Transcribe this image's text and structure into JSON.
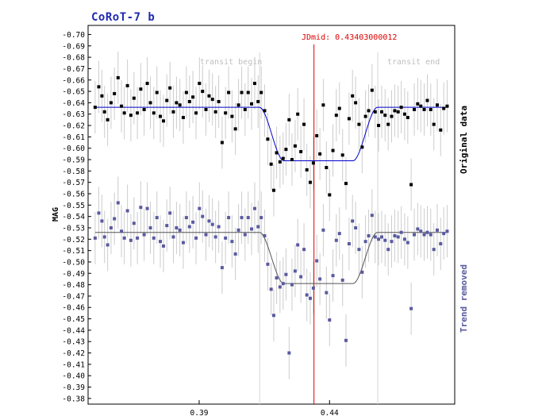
{
  "chart_data": {
    "type": "scatter",
    "title": "CoRoT-7 b",
    "ylabel": "MAG",
    "xlim": [
      0.3474,
      0.488
    ],
    "ylim": [
      -0.375,
      -0.708
    ],
    "x_ticks": [
      0.39,
      0.44
    ],
    "y_ticks": [
      -0.7,
      -0.69,
      -0.68,
      -0.67,
      -0.66,
      -0.65,
      -0.64,
      -0.63,
      -0.62,
      -0.61,
      -0.6,
      -0.59,
      -0.58,
      -0.57,
      -0.56,
      -0.55,
      -0.54,
      -0.53,
      -0.52,
      -0.51,
      -0.5,
      -0.49,
      -0.48,
      -0.47,
      -0.46,
      -0.45,
      -0.44,
      -0.43,
      -0.42,
      -0.41,
      -0.4,
      -0.39,
      -0.38
    ],
    "annotations": {
      "jdmid_label": "JDmid: 0.43403000012",
      "transit_begin": "transit begin",
      "transit_end": "transit end"
    },
    "jdmid": 0.43403,
    "transit_begin_x": 0.4132,
    "transit_end_x": 0.4585,
    "colors": {
      "original": "#000000",
      "detrended": "#5a5aa0",
      "model_original": "#0000cc",
      "model_detrended": "#555555",
      "error_bar": "#cccccc",
      "jdmid_line": "#dd0000",
      "transit_line": "#d6d6d6",
      "title": "#1f2bb0"
    },
    "series": [
      {
        "name": "Original data",
        "points": [
          [
            0.3501,
            -0.636
          ],
          [
            0.3515,
            -0.654
          ],
          [
            0.3527,
            -0.646
          ],
          [
            0.3537,
            -0.632
          ],
          [
            0.3549,
            -0.625
          ],
          [
            0.3562,
            -0.64
          ],
          [
            0.3575,
            -0.648
          ],
          [
            0.3589,
            -0.662
          ],
          [
            0.3602,
            -0.637
          ],
          [
            0.3613,
            -0.631
          ],
          [
            0.3625,
            -0.655
          ],
          [
            0.3638,
            -0.629
          ],
          [
            0.365,
            -0.644
          ],
          [
            0.3663,
            -0.631
          ],
          [
            0.3676,
            -0.652
          ],
          [
            0.3689,
            -0.634
          ],
          [
            0.3701,
            -0.657
          ],
          [
            0.3713,
            -0.64
          ],
          [
            0.3726,
            -0.631
          ],
          [
            0.3738,
            -0.649
          ],
          [
            0.3751,
            -0.628
          ],
          [
            0.3763,
            -0.624
          ],
          [
            0.3776,
            -0.642
          ],
          [
            0.3788,
            -0.653
          ],
          [
            0.3801,
            -0.632
          ],
          [
            0.3813,
            -0.64
          ],
          [
            0.3826,
            -0.638
          ],
          [
            0.3839,
            -0.627
          ],
          [
            0.3851,
            -0.649
          ],
          [
            0.3863,
            -0.641
          ],
          [
            0.3876,
            -0.645
          ],
          [
            0.3888,
            -0.631
          ],
          [
            0.3901,
            -0.657
          ],
          [
            0.3913,
            -0.65
          ],
          [
            0.3926,
            -0.634
          ],
          [
            0.3938,
            -0.646
          ],
          [
            0.3951,
            -0.643
          ],
          [
            0.3963,
            -0.632
          ],
          [
            0.3975,
            -0.641
          ],
          [
            0.3988,
            -0.605
          ],
          [
            0.4001,
            -0.631
          ],
          [
            0.4013,
            -0.649
          ],
          [
            0.4026,
            -0.628
          ],
          [
            0.4039,
            -0.617
          ],
          [
            0.4051,
            -0.638
          ],
          [
            0.4063,
            -0.649
          ],
          [
            0.4076,
            -0.634
          ],
          [
            0.4088,
            -0.649
          ],
          [
            0.4101,
            -0.639
          ],
          [
            0.4113,
            -0.657
          ],
          [
            0.4126,
            -0.641
          ],
          [
            0.4138,
            -0.649
          ],
          [
            0.4151,
            -0.633
          ],
          [
            0.4163,
            -0.608
          ],
          [
            0.4176,
            -0.586
          ],
          [
            0.4186,
            -0.563
          ],
          [
            0.4197,
            -0.596
          ],
          [
            0.421,
            -0.588
          ],
          [
            0.4222,
            -0.591
          ],
          [
            0.4233,
            -0.599
          ],
          [
            0.4245,
            -0.625
          ],
          [
            0.4256,
            -0.59
          ],
          [
            0.4268,
            -0.602
          ],
          [
            0.4278,
            -0.63
          ],
          [
            0.429,
            -0.597
          ],
          [
            0.4302,
            -0.621
          ],
          [
            0.4313,
            -0.581
          ],
          [
            0.4326,
            -0.57
          ],
          [
            0.4338,
            -0.587
          ],
          [
            0.4351,
            -0.611
          ],
          [
            0.4363,
            -0.595
          ],
          [
            0.4376,
            -0.638
          ],
          [
            0.4388,
            -0.583
          ],
          [
            0.44,
            -0.559
          ],
          [
            0.4413,
            -0.598
          ],
          [
            0.4426,
            -0.629
          ],
          [
            0.4438,
            -0.635
          ],
          [
            0.445,
            -0.594
          ],
          [
            0.4463,
            -0.569
          ],
          [
            0.4475,
            -0.626
          ],
          [
            0.4488,
            -0.646
          ],
          [
            0.45,
            -0.64
          ],
          [
            0.4513,
            -0.621
          ],
          [
            0.4525,
            -0.601
          ],
          [
            0.4538,
            -0.628
          ],
          [
            0.455,
            -0.633
          ],
          [
            0.4563,
            -0.651
          ],
          [
            0.4575,
            -0.632
          ],
          [
            0.4588,
            -0.62
          ],
          [
            0.46,
            -0.632
          ],
          [
            0.4613,
            -0.629
          ],
          [
            0.4625,
            -0.621
          ],
          [
            0.4638,
            -0.628
          ],
          [
            0.465,
            -0.633
          ],
          [
            0.4663,
            -0.632
          ],
          [
            0.4675,
            -0.636
          ],
          [
            0.4688,
            -0.63
          ],
          [
            0.47,
            -0.627
          ],
          [
            0.4713,
            -0.568
          ],
          [
            0.4725,
            -0.634
          ],
          [
            0.4738,
            -0.639
          ],
          [
            0.475,
            -0.637
          ],
          [
            0.4763,
            -0.634
          ],
          [
            0.4775,
            -0.642
          ],
          [
            0.4788,
            -0.634
          ],
          [
            0.48,
            -0.621
          ],
          [
            0.4813,
            -0.638
          ],
          [
            0.4826,
            -0.616
          ],
          [
            0.4838,
            -0.635
          ],
          [
            0.4851,
            -0.637
          ]
        ]
      },
      {
        "name": "Trend removed",
        "points": [
          [
            0.3501,
            -0.521
          ],
          [
            0.3515,
            -0.543
          ],
          [
            0.3527,
            -0.536
          ],
          [
            0.3537,
            -0.522
          ],
          [
            0.3549,
            -0.515
          ],
          [
            0.3562,
            -0.53
          ],
          [
            0.3575,
            -0.538
          ],
          [
            0.3589,
            -0.552
          ],
          [
            0.3602,
            -0.527
          ],
          [
            0.3613,
            -0.521
          ],
          [
            0.3625,
            -0.545
          ],
          [
            0.3638,
            -0.519
          ],
          [
            0.365,
            -0.534
          ],
          [
            0.3663,
            -0.521
          ],
          [
            0.3676,
            -0.548
          ],
          [
            0.3689,
            -0.524
          ],
          [
            0.3701,
            -0.547
          ],
          [
            0.3713,
            -0.53
          ],
          [
            0.3726,
            -0.521
          ],
          [
            0.3738,
            -0.539
          ],
          [
            0.3751,
            -0.518
          ],
          [
            0.3763,
            -0.514
          ],
          [
            0.3776,
            -0.532
          ],
          [
            0.3788,
            -0.543
          ],
          [
            0.3801,
            -0.522
          ],
          [
            0.3813,
            -0.53
          ],
          [
            0.3826,
            -0.528
          ],
          [
            0.3839,
            -0.517
          ],
          [
            0.3851,
            -0.539
          ],
          [
            0.3863,
            -0.531
          ],
          [
            0.3876,
            -0.535
          ],
          [
            0.3888,
            -0.521
          ],
          [
            0.3901,
            -0.547
          ],
          [
            0.3913,
            -0.54
          ],
          [
            0.3926,
            -0.524
          ],
          [
            0.3938,
            -0.536
          ],
          [
            0.3951,
            -0.533
          ],
          [
            0.3963,
            -0.522
          ],
          [
            0.3975,
            -0.531
          ],
          [
            0.3988,
            -0.495
          ],
          [
            0.4001,
            -0.521
          ],
          [
            0.4013,
            -0.539
          ],
          [
            0.4026,
            -0.518
          ],
          [
            0.4039,
            -0.507
          ],
          [
            0.4051,
            -0.528
          ],
          [
            0.4063,
            -0.539
          ],
          [
            0.4076,
            -0.524
          ],
          [
            0.4088,
            -0.539
          ],
          [
            0.4101,
            -0.529
          ],
          [
            0.4113,
            -0.547
          ],
          [
            0.4126,
            -0.531
          ],
          [
            0.4138,
            -0.539
          ],
          [
            0.4151,
            -0.523
          ],
          [
            0.4163,
            -0.498
          ],
          [
            0.4176,
            -0.476
          ],
          [
            0.4186,
            -0.453
          ],
          [
            0.4197,
            -0.486
          ],
          [
            0.421,
            -0.478
          ],
          [
            0.4222,
            -0.481
          ],
          [
            0.4233,
            -0.489
          ],
          [
            0.4245,
            -0.42
          ],
          [
            0.4256,
            -0.48
          ],
          [
            0.4268,
            -0.492
          ],
          [
            0.4278,
            -0.515
          ],
          [
            0.429,
            -0.487
          ],
          [
            0.4302,
            -0.511
          ],
          [
            0.4313,
            -0.471
          ],
          [
            0.4326,
            -0.468
          ],
          [
            0.4338,
            -0.477
          ],
          [
            0.4351,
            -0.501
          ],
          [
            0.4363,
            -0.485
          ],
          [
            0.4376,
            -0.528
          ],
          [
            0.4388,
            -0.473
          ],
          [
            0.44,
            -0.449
          ],
          [
            0.4413,
            -0.488
          ],
          [
            0.4426,
            -0.519
          ],
          [
            0.4438,
            -0.525
          ],
          [
            0.445,
            -0.484
          ],
          [
            0.4463,
            -0.431
          ],
          [
            0.4475,
            -0.516
          ],
          [
            0.4488,
            -0.536
          ],
          [
            0.45,
            -0.53
          ],
          [
            0.4513,
            -0.511
          ],
          [
            0.4525,
            -0.491
          ],
          [
            0.4538,
            -0.518
          ],
          [
            0.455,
            -0.523
          ],
          [
            0.4563,
            -0.541
          ],
          [
            0.4575,
            -0.522
          ],
          [
            0.4588,
            -0.52
          ],
          [
            0.46,
            -0.522
          ],
          [
            0.4613,
            -0.519
          ],
          [
            0.4625,
            -0.511
          ],
          [
            0.4638,
            -0.518
          ],
          [
            0.465,
            -0.523
          ],
          [
            0.4663,
            -0.522
          ],
          [
            0.4675,
            -0.526
          ],
          [
            0.4688,
            -0.52
          ],
          [
            0.47,
            -0.517
          ],
          [
            0.4713,
            -0.459
          ],
          [
            0.4725,
            -0.524
          ],
          [
            0.4738,
            -0.529
          ],
          [
            0.475,
            -0.527
          ],
          [
            0.4763,
            -0.524
          ],
          [
            0.4775,
            -0.526
          ],
          [
            0.4788,
            -0.524
          ],
          [
            0.48,
            -0.511
          ],
          [
            0.4813,
            -0.528
          ],
          [
            0.4826,
            -0.516
          ],
          [
            0.4838,
            -0.525
          ],
          [
            0.4851,
            -0.527
          ]
        ]
      }
    ],
    "models": {
      "original": {
        "baseline": -0.636,
        "depth": 0.047
      },
      "detrended": {
        "baseline": -0.526,
        "depth": 0.045
      },
      "x_start": 0.3501,
      "x_end": 0.4851,
      "ingress_start": 0.4131,
      "ingress_end": 0.4225,
      "egress_start": 0.449,
      "egress_end": 0.4584
    }
  }
}
